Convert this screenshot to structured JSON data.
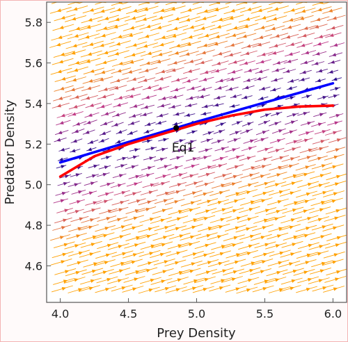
{
  "chart_data": {
    "type": "streamplot",
    "title": "",
    "xlabel": "Prey Density",
    "ylabel": "Predator Density",
    "xlim": [
      3.9,
      6.1
    ],
    "ylim": [
      4.42,
      5.9
    ],
    "x_ticks": [
      "4.0",
      "4.5",
      "5.0",
      "5.5",
      "6.0"
    ],
    "x_tick_values": [
      4.0,
      4.5,
      5.0,
      5.5,
      6.0
    ],
    "y_ticks": [
      "4.6",
      "4.8",
      "5.0",
      "5.2",
      "5.4",
      "5.6",
      "5.8"
    ],
    "y_tick_values": [
      4.6,
      4.8,
      5.0,
      5.2,
      5.4,
      5.6,
      5.8
    ],
    "series": [
      {
        "color": "#0000ff",
        "x": [
          4.0,
          4.5,
          5.0,
          5.5,
          6.0
        ],
        "y": [
          5.11,
          5.21,
          5.31,
          5.405,
          5.5
        ]
      },
      {
        "color": "#ff0000",
        "x": [
          4.0,
          4.25,
          4.5,
          4.75,
          5.0,
          5.25,
          5.5,
          5.75,
          6.0
        ],
        "y": [
          5.04,
          5.14,
          5.2,
          5.25,
          5.3,
          5.34,
          5.37,
          5.385,
          5.39
        ]
      }
    ],
    "equilibrium": {
      "label": "Eq1",
      "x": 4.85,
      "y": 5.28,
      "color": "#000000"
    },
    "colors": {
      "fast": "#ffa000",
      "mid": "#c03a8a",
      "slow": "#1a0a8c"
    },
    "grid": false
  }
}
